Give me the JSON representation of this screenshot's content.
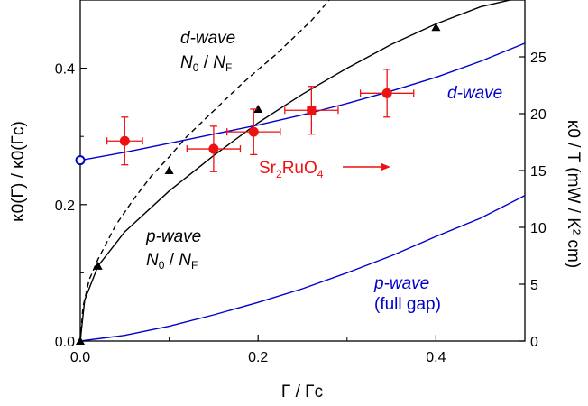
{
  "chart_data": {
    "type": "line",
    "title": "",
    "xlabel": "Γ / Γc",
    "ylabel_left": "κ0(Γ) / κ0(Γc)",
    "ylabel_right": "κ0 / T (mW / K² cm)",
    "xlim": [
      0,
      0.5
    ],
    "ylim_left": [
      0,
      0.5
    ],
    "ylim_right": [
      0,
      30
    ],
    "x_ticks": [
      "0.0",
      "0.2",
      "0.4"
    ],
    "y_left_ticks": [
      "0.0",
      "0.2",
      "0.4"
    ],
    "y_right_ticks": [
      "0",
      "5",
      "10",
      "15",
      "20",
      "25"
    ],
    "grid": false,
    "legend": "none",
    "series": [
      {
        "axis": "left",
        "color": "#000000",
        "style": "dashed",
        "x": [
          0,
          0.003,
          0.01,
          0.02,
          0.04,
          0.06,
          0.08,
          0.1,
          0.12,
          0.14,
          0.16,
          0.18,
          0.2,
          0.22,
          0.24,
          0.26,
          0.28
        ],
        "y": [
          0,
          0.05,
          0.09,
          0.12,
          0.17,
          0.208,
          0.242,
          0.27,
          0.3,
          0.325,
          0.35,
          0.375,
          0.398,
          0.42,
          0.445,
          0.47,
          0.5
        ]
      },
      {
        "axis": "left",
        "color": "#000000",
        "style": "solid",
        "x": [
          0,
          0.005,
          0.02,
          0.05,
          0.1,
          0.15,
          0.2,
          0.25,
          0.3,
          0.35,
          0.4,
          0.45,
          0.5
        ],
        "y": [
          0,
          0.06,
          0.11,
          0.16,
          0.22,
          0.272,
          0.32,
          0.362,
          0.4,
          0.435,
          0.465,
          0.49,
          0.505
        ]
      },
      {
        "axis": "right",
        "color": "#0000cc",
        "style": "solid",
        "x": [
          0,
          0.05,
          0.1,
          0.15,
          0.2,
          0.25,
          0.3,
          0.35,
          0.4,
          0.45,
          0.5
        ],
        "y": [
          15.9,
          16.6,
          17.4,
          18.2,
          19.0,
          19.9,
          20.9,
          22.0,
          23.2,
          24.6,
          26.2
        ]
      },
      {
        "axis": "right",
        "color": "#0000cc",
        "style": "solid",
        "x": [
          0,
          0.05,
          0.1,
          0.15,
          0.2,
          0.25,
          0.3,
          0.35,
          0.4,
          0.45,
          0.5
        ],
        "y": [
          0,
          0.5,
          1.3,
          2.3,
          3.4,
          4.6,
          6.0,
          7.5,
          9.2,
          10.8,
          12.8
        ]
      }
    ],
    "markers": [
      {
        "axis": "left",
        "shape": "triangle",
        "color": "#000000",
        "x": [
          0,
          0.02,
          0.1,
          0.2,
          0.4
        ],
        "y": [
          0,
          0.11,
          0.25,
          0.34,
          0.46
        ]
      },
      {
        "axis": "right",
        "shape": "open-circle",
        "color": "#0000cc",
        "x": [
          0
        ],
        "y": [
          15.9
        ]
      }
    ],
    "data_points": [
      {
        "shape": "circle",
        "color": "#ee1111",
        "x": 0.05,
        "y": 17.6,
        "xerr": 0.02,
        "yerr": 2.1
      },
      {
        "shape": "circle",
        "color": "#ee1111",
        "x": 0.15,
        "y": 16.9,
        "xerr": 0.03,
        "yerr": 2.0
      },
      {
        "shape": "circle",
        "color": "#ee1111",
        "x": 0.195,
        "y": 18.4,
        "xerr": 0.03,
        "yerr": 2.0
      },
      {
        "shape": "square",
        "color": "#ee1111",
        "x": 0.26,
        "y": 20.3,
        "xerr": 0.03,
        "yerr": 2.1
      },
      {
        "shape": "circle",
        "color": "#ee1111",
        "x": 0.345,
        "y": 21.8,
        "xerr": 0.03,
        "yerr": 2.1
      }
    ],
    "annotations": {
      "dwave_nodes": {
        "main": "d-wave",
        "line2a": "N",
        "line2a_sub": "0",
        "sep": " / ",
        "line2b": "N",
        "line2b_sub": "F"
      },
      "pwave_nodes": {
        "main": "p-wave",
        "line2a": "N",
        "line2a_sub": "0",
        "sep": " / ",
        "line2b": "N",
        "line2b_sub": "F"
      },
      "dwave_blue": "d-wave",
      "pwave_full_1": "p-wave",
      "pwave_full_2": "(full gap)",
      "sample": {
        "a": "Sr",
        "a_sub": "2",
        "b": "RuO",
        "b_sub": "4"
      }
    }
  }
}
